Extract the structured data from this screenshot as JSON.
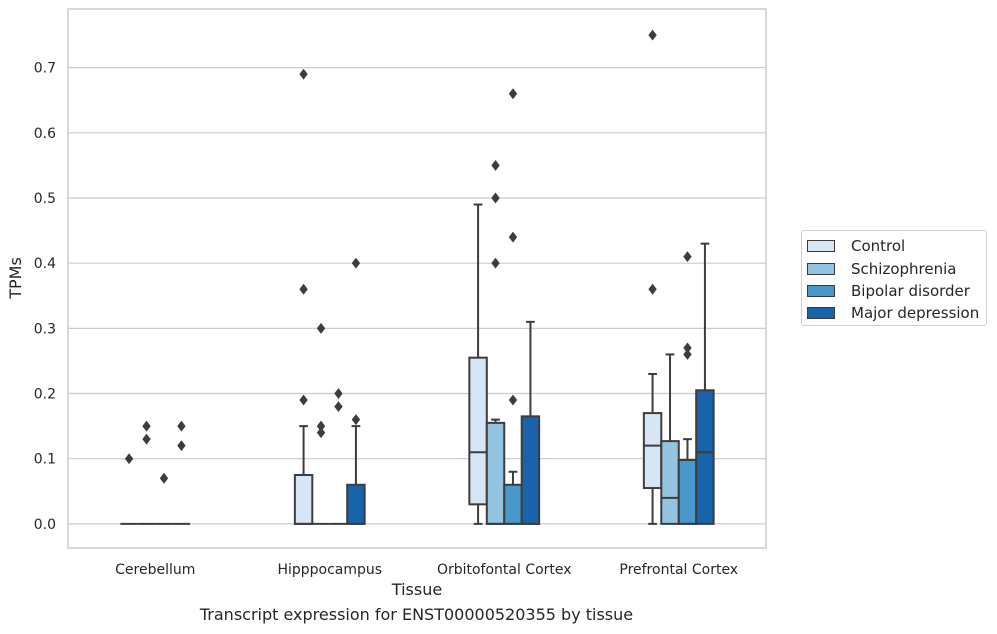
{
  "chart_data": {
    "type": "box",
    "xlabel": "Tissue",
    "ylabel": "TPMs",
    "caption": "Transcript expression for ENST00000520355 by tissue",
    "ylim": [
      -0.037,
      0.79
    ],
    "yticks": [
      0.0,
      0.1,
      0.2,
      0.3,
      0.4,
      0.5,
      0.6,
      0.7
    ],
    "ytick_labels": [
      "0.0",
      "0.1",
      "0.2",
      "0.3",
      "0.4",
      "0.5",
      "0.6",
      "0.7"
    ],
    "grid": "horizontal",
    "legend_position": "right",
    "categories": [
      "Cerebellum",
      "Hipppocampus",
      "Orbitofontal Cortex",
      "Prefrontal Cortex"
    ],
    "series": [
      {
        "name": "Control",
        "color": "#d7e6f5",
        "boxes": [
          {
            "whisker_low": 0,
            "q1": 0,
            "median": 0,
            "q3": 0,
            "whisker_high": 0,
            "outliers": [
              0.1
            ]
          },
          {
            "whisker_low": 0,
            "q1": 0,
            "median": 0,
            "q3": 0.075,
            "whisker_high": 0.15,
            "outliers": [
              0.19,
              0.36,
              0.69
            ]
          },
          {
            "whisker_low": 0,
            "q1": 0.03,
            "median": 0.11,
            "q3": 0.255,
            "whisker_high": 0.49,
            "outliers": []
          },
          {
            "whisker_low": 0,
            "q1": 0.055,
            "median": 0.12,
            "q3": 0.17,
            "whisker_high": 0.23,
            "outliers": [
              0.36,
              0.75
            ]
          }
        ]
      },
      {
        "name": "Schizophrenia",
        "color": "#94c4df",
        "boxes": [
          {
            "whisker_low": 0,
            "q1": 0,
            "median": 0,
            "q3": 0,
            "whisker_high": 0,
            "outliers": [
              0.13,
              0.15
            ]
          },
          {
            "whisker_low": 0,
            "q1": 0,
            "median": 0,
            "q3": 0,
            "whisker_high": 0,
            "outliers": [
              0.14,
              0.15,
              0.3
            ]
          },
          {
            "whisker_low": 0,
            "q1": 0,
            "median": 0,
            "q3": 0.155,
            "whisker_high": 0.16,
            "outliers": [
              0.4,
              0.5,
              0.55
            ]
          },
          {
            "whisker_low": 0,
            "q1": 0,
            "median": 0.04,
            "q3": 0.127,
            "whisker_high": 0.26,
            "outliers": []
          }
        ]
      },
      {
        "name": "Bipolar disorder",
        "color": "#4a98c9",
        "boxes": [
          {
            "whisker_low": 0,
            "q1": 0,
            "median": 0,
            "q3": 0,
            "whisker_high": 0,
            "outliers": [
              0.07
            ]
          },
          {
            "whisker_low": 0,
            "q1": 0,
            "median": 0,
            "q3": 0,
            "whisker_high": 0,
            "outliers": [
              0.18,
              0.2
            ]
          },
          {
            "whisker_low": 0,
            "q1": 0,
            "median": 0,
            "q3": 0.06,
            "whisker_high": 0.08,
            "outliers": [
              0.19,
              0.44,
              0.66
            ]
          },
          {
            "whisker_low": 0,
            "q1": 0,
            "median": 0,
            "q3": 0.098,
            "whisker_high": 0.13,
            "outliers": [
              0.26,
              0.27,
              0.41
            ]
          }
        ]
      },
      {
        "name": "Major depression",
        "color": "#1764ab",
        "boxes": [
          {
            "whisker_low": 0,
            "q1": 0,
            "median": 0,
            "q3": 0,
            "whisker_high": 0,
            "outliers": [
              0.12,
              0.15
            ]
          },
          {
            "whisker_low": 0,
            "q1": 0,
            "median": 0,
            "q3": 0.06,
            "whisker_high": 0.15,
            "outliers": [
              0.16,
              0.4
            ]
          },
          {
            "whisker_low": 0,
            "q1": 0,
            "median": 0,
            "q3": 0.165,
            "whisker_high": 0.31,
            "outliers": []
          },
          {
            "whisker_low": 0,
            "q1": 0,
            "median": 0.11,
            "q3": 0.205,
            "whisker_high": 0.43,
            "outliers": []
          }
        ]
      }
    ]
  }
}
